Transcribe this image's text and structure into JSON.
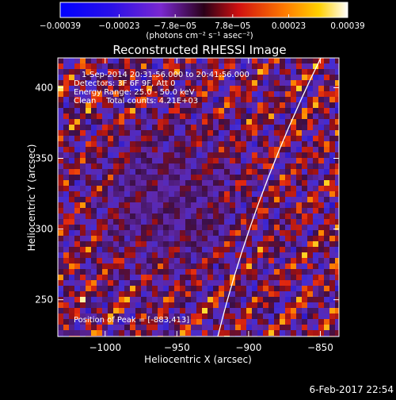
{
  "colorbar": {
    "tick_labels": [
      "−0.00039",
      "−0.00023",
      "−7.8e−05",
      "7.8e−05",
      "0.00023",
      "0.00039"
    ],
    "tick_values": [
      -0.00039,
      -0.00023,
      -7.8e-05,
      7.8e-05,
      0.00023,
      0.00039
    ],
    "range": [
      -0.00039,
      0.00039
    ],
    "units_label": "(photons cm⁻² s⁻¹ asec⁻²)"
  },
  "chart_data": {
    "type": "heatmap",
    "title": "Reconstructed RHESSI Image",
    "xlabel": "Heliocentric X (arcsec)",
    "ylabel": "Heliocentric Y (arcsec)",
    "xlim": [
      -1033,
      -837
    ],
    "ylim": [
      224,
      421
    ],
    "x_ticks": [
      -1000,
      -950,
      -900,
      -850
    ],
    "x_tick_labels": [
      "−1000",
      "−950",
      "−900",
      "−850"
    ],
    "y_ticks": [
      250,
      300,
      350,
      400
    ],
    "y_tick_labels": [
      "250",
      "300",
      "350",
      "400"
    ],
    "peak": [
      -883,
      413
    ],
    "annotations": {
      "time": "1-Sep-2014 20:31:56.000 to 20:41:56.000",
      "detectors": "Detectors: 3F 6F 9F, Att 0",
      "energy": "Energy Range: 25.0 - 50.0 keV",
      "method": "Clean    Total counts: 4.21E+03",
      "peak_text": "Position of Peak = [-883,413]"
    },
    "limb": "solar limb arc"
  },
  "footer": {
    "timestamp": "6-Feb-2017 22:54"
  },
  "colors": {
    "background": "#000000",
    "text": "#ffffff",
    "limb": "#ffffff"
  }
}
